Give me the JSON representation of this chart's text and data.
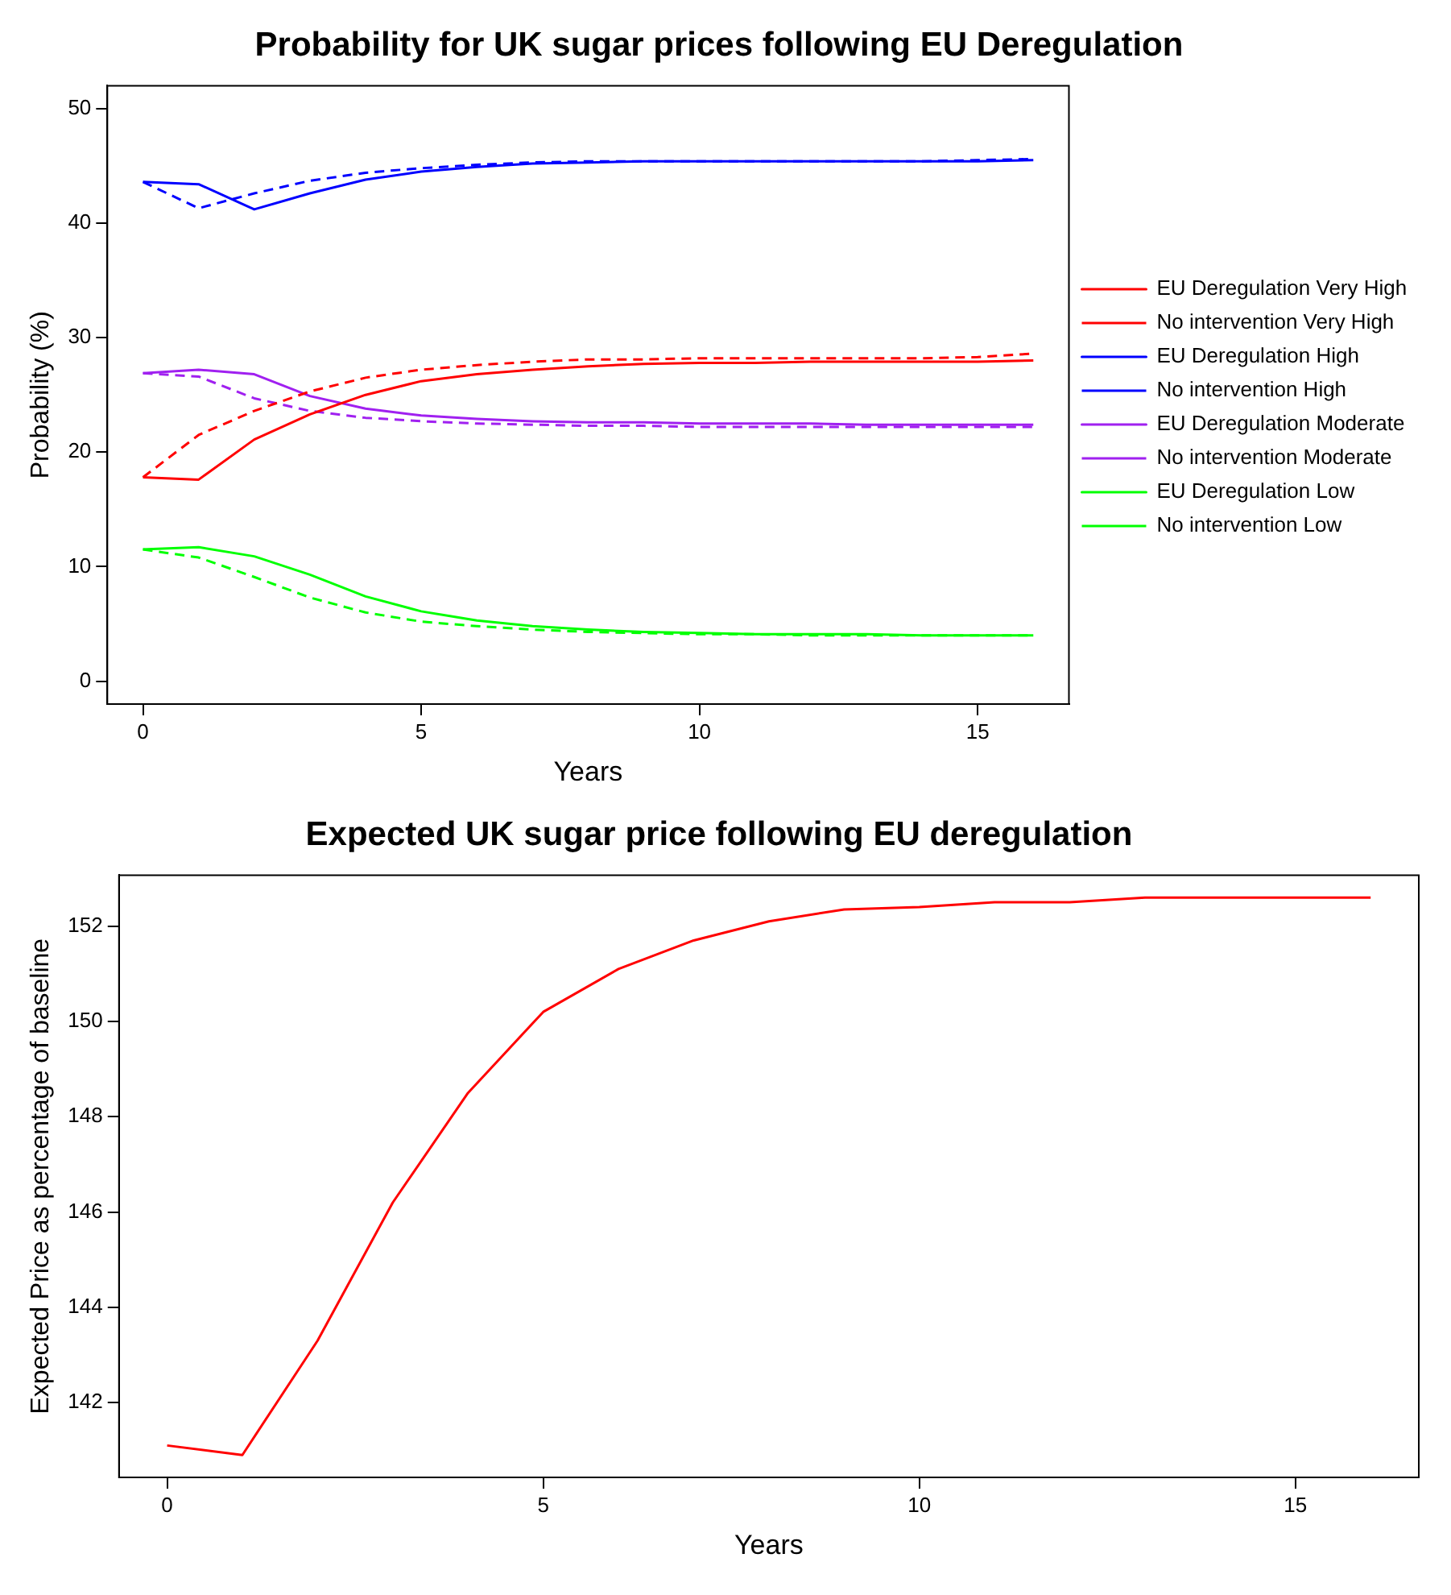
{
  "chart_data": [
    {
      "type": "line",
      "title": "Probability for UK sugar prices following EU Deregulation",
      "xlabel": "Years",
      "ylabel": "Probability (%)",
      "x": [
        0,
        1,
        2,
        3,
        4,
        5,
        6,
        7,
        8,
        9,
        10,
        11,
        12,
        13,
        14,
        15,
        16
      ],
      "xlim": [
        -0.64,
        16.64
      ],
      "ylim": [
        -2,
        52
      ],
      "xticks": [
        0,
        5,
        10,
        15
      ],
      "yticks": [
        0,
        10,
        20,
        30,
        40,
        50
      ],
      "grid": false,
      "legend": "right",
      "marker": "none",
      "series": [
        {
          "name": "EU Deregulation Very High",
          "color": "#ff0000",
          "line_style": "solid",
          "values": [
            17.8,
            17.6,
            21.1,
            23.3,
            25.0,
            26.2,
            26.8,
            27.2,
            27.5,
            27.7,
            27.8,
            27.8,
            27.9,
            27.9,
            27.9,
            27.9,
            28.0
          ]
        },
        {
          "name": "No intervention Very High",
          "color": "#ff0000",
          "line_style": "dashed",
          "values": [
            17.8,
            21.5,
            23.6,
            25.3,
            26.5,
            27.2,
            27.6,
            27.9,
            28.1,
            28.1,
            28.2,
            28.2,
            28.2,
            28.2,
            28.2,
            28.3,
            28.6
          ]
        },
        {
          "name": "EU Deregulation High",
          "color": "#0000ff",
          "line_style": "solid",
          "values": [
            43.6,
            43.4,
            41.2,
            42.6,
            43.8,
            44.5,
            44.9,
            45.2,
            45.3,
            45.4,
            45.4,
            45.4,
            45.4,
            45.4,
            45.4,
            45.4,
            45.5
          ]
        },
        {
          "name": "No intervention High",
          "color": "#0000ff",
          "line_style": "dashed",
          "values": [
            43.6,
            41.3,
            42.6,
            43.7,
            44.4,
            44.8,
            45.1,
            45.3,
            45.4,
            45.4,
            45.4,
            45.4,
            45.4,
            45.4,
            45.4,
            45.5,
            45.6
          ]
        },
        {
          "name": "EU Deregulation Moderate",
          "color": "#a020f0",
          "line_style": "solid",
          "values": [
            26.9,
            27.2,
            26.8,
            24.9,
            23.8,
            23.2,
            22.9,
            22.7,
            22.6,
            22.6,
            22.5,
            22.5,
            22.5,
            22.4,
            22.4,
            22.4,
            22.4
          ]
        },
        {
          "name": "No intervention Moderate",
          "color": "#a020f0",
          "line_style": "dashed",
          "values": [
            26.9,
            26.6,
            24.7,
            23.6,
            23.0,
            22.7,
            22.5,
            22.4,
            22.3,
            22.3,
            22.2,
            22.2,
            22.2,
            22.2,
            22.2,
            22.2,
            22.2
          ]
        },
        {
          "name": "EU Deregulation Low",
          "color": "#00ff00",
          "line_style": "solid",
          "values": [
            11.5,
            11.7,
            10.9,
            9.3,
            7.4,
            6.1,
            5.3,
            4.8,
            4.5,
            4.3,
            4.2,
            4.1,
            4.1,
            4.1,
            4.0,
            4.0,
            4.0
          ]
        },
        {
          "name": "No intervention Low",
          "color": "#00ff00",
          "line_style": "dashed",
          "values": [
            11.5,
            10.8,
            9.1,
            7.3,
            6.0,
            5.2,
            4.8,
            4.5,
            4.3,
            4.2,
            4.1,
            4.1,
            4.0,
            4.0,
            4.0,
            4.0,
            4.0
          ]
        }
      ]
    },
    {
      "type": "line",
      "title": "Expected UK sugar price following EU deregulation",
      "xlabel": "Years",
      "ylabel": "Expected Price as percentage of baseline",
      "x": [
        0,
        1,
        2,
        3,
        4,
        5,
        6,
        7,
        8,
        9,
        10,
        11,
        12,
        13,
        14,
        15,
        16
      ],
      "xlim": [
        -0.64,
        16.64
      ],
      "ylim": [
        140.43,
        153.07
      ],
      "xticks": [
        0,
        5,
        10,
        15
      ],
      "yticks": [
        142,
        144,
        146,
        148,
        150,
        152
      ],
      "grid": false,
      "marker": "none",
      "series": [
        {
          "color": "#ff0000",
          "line_style": "solid",
          "values": [
            141.1,
            140.9,
            143.3,
            146.2,
            148.5,
            150.2,
            151.1,
            151.7,
            152.1,
            152.35,
            152.4,
            152.5,
            152.5,
            152.6,
            152.6,
            152.6,
            152.6
          ]
        }
      ]
    }
  ]
}
